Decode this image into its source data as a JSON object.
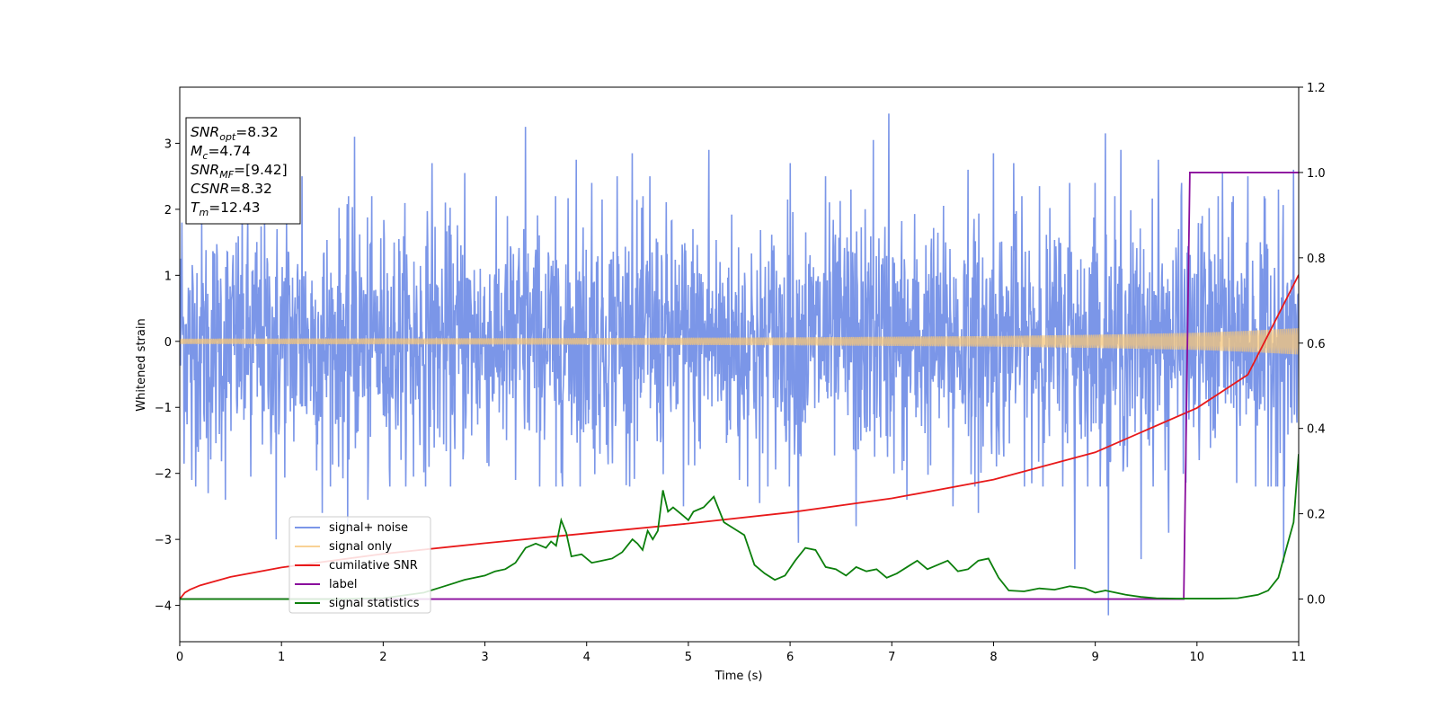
{
  "chart_data": {
    "type": "line",
    "title": "",
    "xlabel": "Time (s)",
    "ylabel": "Whitened strain",
    "y2label": "",
    "xlim": [
      0,
      11
    ],
    "ylim": [
      -4.55,
      3.85
    ],
    "y2lim": [
      -0.1,
      1.2
    ],
    "grid": false,
    "x_ticks": [
      "0",
      "1",
      "2",
      "3",
      "4",
      "5",
      "6",
      "7",
      "8",
      "9",
      "10",
      "11"
    ],
    "y_ticks": [
      "−4",
      "−3",
      "−2",
      "−1",
      "0",
      "1",
      "2",
      "3"
    ],
    "y2_ticks": [
      "0.0",
      "0.2",
      "0.4",
      "0.6",
      "0.8",
      "1.0",
      "1.2"
    ],
    "info_box": {
      "position": "top-left",
      "lines": [
        {
          "symbol": "SNR",
          "sub": "opt",
          "value": "=8.32"
        },
        {
          "symbol": "M",
          "sub": "c",
          "value": "=4.74"
        },
        {
          "symbol": "SNR",
          "sub": "MF",
          "value": "=[9.42]"
        },
        {
          "symbol": "CSNR",
          "sub": "",
          "value": "=8.32"
        },
        {
          "symbol": "T",
          "sub": "m",
          "value": "=12.43"
        }
      ]
    },
    "legend": {
      "position": "lower-left",
      "entries": [
        {
          "label": "signal+ noise",
          "color": "#7b96e8"
        },
        {
          "label": "signal only",
          "color": "#f7c77a"
        },
        {
          "label": "cumilative SNR",
          "color": "#e8191a"
        },
        {
          "label": "label",
          "color": "#8a0d9c"
        },
        {
          "label": "signal statistics",
          "color": "#0c7f0c"
        }
      ]
    },
    "series": [
      {
        "name": "signal+ noise",
        "axis": "left",
        "color": "#7b96e8",
        "noise_sigma": 0.9,
        "peaks": [
          [
            0.02,
            1.8
          ],
          [
            0.12,
            -2.1
          ],
          [
            0.28,
            -2.3
          ],
          [
            0.45,
            -2.4
          ],
          [
            0.7,
            -2.05
          ],
          [
            0.95,
            -3.0
          ],
          [
            1.05,
            1.8
          ],
          [
            1.2,
            2.5
          ],
          [
            1.4,
            -2.6
          ],
          [
            1.65,
            -2.9
          ],
          [
            1.72,
            3.1
          ],
          [
            1.85,
            -2.4
          ],
          [
            2.3,
            -2.05
          ],
          [
            2.48,
            2.7
          ],
          [
            2.8,
            2.55
          ],
          [
            3.3,
            -2.1
          ],
          [
            3.4,
            3.25
          ],
          [
            3.7,
            -2.2
          ],
          [
            3.9,
            2.75
          ],
          [
            4.05,
            2.4
          ],
          [
            4.3,
            2.5
          ],
          [
            4.45,
            2.85
          ],
          [
            4.62,
            2.5
          ],
          [
            4.95,
            -2.5
          ],
          [
            5.2,
            2.9
          ],
          [
            5.5,
            -2.1
          ],
          [
            5.7,
            -2.45
          ],
          [
            6.0,
            2.7
          ],
          [
            6.08,
            -3.05
          ],
          [
            6.35,
            2.5
          ],
          [
            6.6,
            2.3
          ],
          [
            6.65,
            -2.8
          ],
          [
            6.82,
            3.05
          ],
          [
            6.97,
            3.45
          ],
          [
            7.15,
            -2.4
          ],
          [
            7.6,
            -2.5
          ],
          [
            7.75,
            2.6
          ],
          [
            7.85,
            -2.6
          ],
          [
            8.0,
            2.85
          ],
          [
            8.2,
            2.7
          ],
          [
            8.45,
            2.35
          ],
          [
            8.75,
            2.4
          ],
          [
            8.8,
            -3.45
          ],
          [
            9.0,
            2.4
          ],
          [
            9.1,
            3.15
          ],
          [
            9.13,
            -4.15
          ],
          [
            9.25,
            2.9
          ],
          [
            9.45,
            -3.3
          ],
          [
            9.62,
            2.75
          ],
          [
            9.72,
            -2.9
          ],
          [
            9.85,
            2.4
          ],
          [
            10.05,
            1.9
          ],
          [
            10.25,
            2.55
          ],
          [
            10.5,
            2.5
          ],
          [
            10.7,
            -2.2
          ],
          [
            10.8,
            2.3
          ],
          [
            10.85,
            -3.35
          ],
          [
            10.95,
            2.6
          ]
        ]
      },
      {
        "name": "signal only",
        "axis": "left",
        "color": "#f7c77a",
        "x": [
          0,
          2,
          4,
          6,
          8,
          9,
          10,
          10.5,
          11
        ],
        "envelope": [
          0.04,
          0.045,
          0.05,
          0.06,
          0.08,
          0.1,
          0.13,
          0.16,
          0.2
        ]
      },
      {
        "name": "cumilative SNR",
        "axis": "right",
        "color": "#e8191a",
        "x": [
          0,
          0.05,
          0.1,
          0.2,
          0.5,
          1,
          2,
          3,
          4,
          5,
          6,
          7,
          8,
          9,
          10,
          10.5,
          11
        ],
        "values": [
          0.0,
          0.015,
          0.022,
          0.032,
          0.052,
          0.074,
          0.106,
          0.131,
          0.154,
          0.177,
          0.203,
          0.236,
          0.28,
          0.344,
          0.448,
          0.526,
          0.76
        ]
      },
      {
        "name": "label",
        "axis": "right",
        "color": "#8a0d9c",
        "x": [
          0,
          9.87,
          9.93,
          11
        ],
        "values": [
          0,
          0,
          1,
          1
        ]
      },
      {
        "name": "signal statistics",
        "axis": "right",
        "color": "#0c7f0c",
        "x": [
          0,
          1.5,
          2.0,
          2.4,
          2.6,
          2.8,
          3.0,
          3.1,
          3.2,
          3.3,
          3.4,
          3.5,
          3.6,
          3.65,
          3.7,
          3.75,
          3.8,
          3.85,
          3.95,
          4.05,
          4.15,
          4.25,
          4.35,
          4.45,
          4.5,
          4.55,
          4.6,
          4.65,
          4.7,
          4.75,
          4.8,
          4.85,
          4.95,
          5.0,
          5.05,
          5.15,
          5.25,
          5.35,
          5.45,
          5.55,
          5.65,
          5.75,
          5.85,
          5.95,
          6.05,
          6.15,
          6.25,
          6.35,
          6.45,
          6.55,
          6.65,
          6.75,
          6.85,
          6.95,
          7.05,
          7.15,
          7.25,
          7.35,
          7.45,
          7.55,
          7.65,
          7.75,
          7.85,
          7.95,
          8.05,
          8.15,
          8.3,
          8.45,
          8.6,
          8.75,
          8.9,
          9.0,
          9.1,
          9.2,
          9.3,
          9.45,
          9.6,
          9.8,
          10.0,
          10.2,
          10.4,
          10.6,
          10.7,
          10.8,
          10.88,
          10.95,
          11.0
        ],
        "values": [
          0.0,
          0.0,
          0.002,
          0.015,
          0.03,
          0.045,
          0.055,
          0.065,
          0.07,
          0.085,
          0.12,
          0.13,
          0.12,
          0.135,
          0.125,
          0.185,
          0.155,
          0.1,
          0.105,
          0.085,
          0.09,
          0.095,
          0.11,
          0.14,
          0.13,
          0.115,
          0.16,
          0.14,
          0.16,
          0.255,
          0.205,
          0.215,
          0.195,
          0.185,
          0.205,
          0.215,
          0.24,
          0.18,
          0.165,
          0.15,
          0.08,
          0.06,
          0.045,
          0.055,
          0.09,
          0.12,
          0.115,
          0.075,
          0.07,
          0.055,
          0.075,
          0.065,
          0.07,
          0.05,
          0.06,
          0.075,
          0.09,
          0.07,
          0.08,
          0.09,
          0.065,
          0.07,
          0.09,
          0.095,
          0.05,
          0.02,
          0.018,
          0.025,
          0.022,
          0.03,
          0.025,
          0.015,
          0.02,
          0.015,
          0.01,
          0.005,
          0.002,
          0.001,
          0.001,
          0.001,
          0.002,
          0.01,
          0.02,
          0.05,
          0.12,
          0.18,
          0.34
        ]
      }
    ]
  }
}
